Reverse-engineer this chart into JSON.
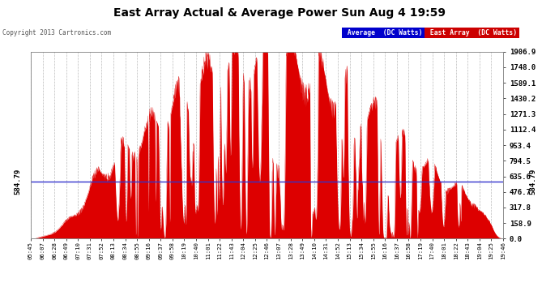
{
  "title": "East Array Actual & Average Power Sun Aug 4 19:59",
  "copyright": "Copyright 2013 Cartronics.com",
  "avg_value": 584.79,
  "y_max": 1906.9,
  "y_min": 0.0,
  "yticks": [
    0.0,
    158.9,
    317.8,
    476.7,
    635.6,
    794.5,
    953.4,
    1112.4,
    1271.3,
    1430.2,
    1589.1,
    1748.0,
    1906.9
  ],
  "bg_color": "#ffffff",
  "plot_bg_color": "#ffffff",
  "grid_color": "#aaaaaa",
  "area_color": "#dd0000",
  "avg_line_color": "#3333cc",
  "title_color": "#000000",
  "avg_label_bg": "#0000cc",
  "east_label_bg": "#cc0000",
  "x_labels": [
    "05:45",
    "06:07",
    "06:28",
    "06:49",
    "07:10",
    "07:31",
    "07:52",
    "08:13",
    "08:34",
    "08:55",
    "09:16",
    "09:37",
    "09:58",
    "10:19",
    "10:40",
    "11:01",
    "11:22",
    "11:43",
    "12:04",
    "12:25",
    "12:46",
    "13:07",
    "13:28",
    "13:49",
    "14:10",
    "14:31",
    "14:52",
    "15:13",
    "15:34",
    "15:55",
    "16:16",
    "16:37",
    "16:58",
    "17:19",
    "17:40",
    "18:01",
    "18:22",
    "18:43",
    "19:04",
    "19:25",
    "19:46"
  ],
  "n_xticks": 41
}
